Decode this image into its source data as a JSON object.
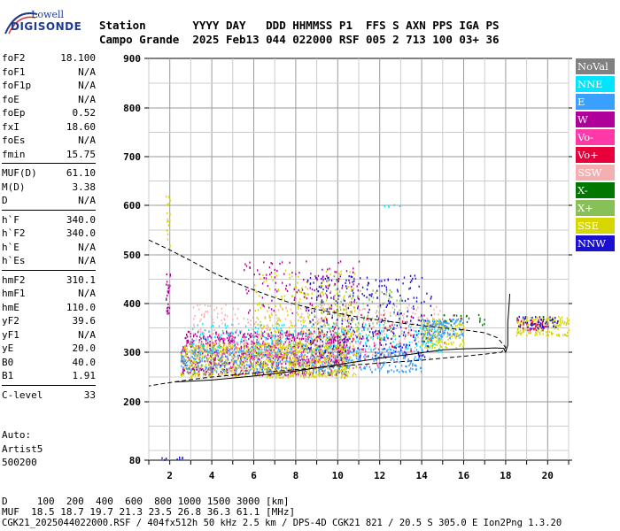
{
  "logo": {
    "line1": "Lowell",
    "line2": "DIGISONDE"
  },
  "header": {
    "row1": "Station       YYYY DAY   DDD HHMMSS P1  FFS S AXN PPS IGA PS",
    "row2": "Campo Grande  2025 Feb13 044 022000 RSF 005 2 713 100 03+ 36"
  },
  "params": [
    [
      {
        "name": "foF2",
        "value": "18.100"
      },
      {
        "name": "foF1",
        "value": "N/A"
      },
      {
        "name": "foF1p",
        "value": "N/A"
      },
      {
        "name": "foE",
        "value": "N/A"
      },
      {
        "name": "foEp",
        "value": "0.52"
      },
      {
        "name": "fxI",
        "value": "18.60"
      },
      {
        "name": "foEs",
        "value": "N/A"
      },
      {
        "name": "fmin",
        "value": "15.75"
      }
    ],
    [
      {
        "name": "MUF(D)",
        "value": "61.10"
      },
      {
        "name": "M(D)",
        "value": "3.38"
      },
      {
        "name": "D",
        "value": "N/A"
      }
    ],
    [
      {
        "name": "h`F",
        "value": "340.0"
      },
      {
        "name": "h`F2",
        "value": "340.0"
      },
      {
        "name": "h`E",
        "value": "N/A"
      },
      {
        "name": "h`Es",
        "value": "N/A"
      }
    ],
    [
      {
        "name": "hmF2",
        "value": "310.1"
      },
      {
        "name": "hmF1",
        "value": "N/A"
      },
      {
        "name": "hmE",
        "value": "110.0"
      },
      {
        "name": "yF2",
        "value": "39.6"
      },
      {
        "name": "yF1",
        "value": "N/A"
      },
      {
        "name": "yE",
        "value": "20.0"
      },
      {
        "name": "B0",
        "value": "40.0"
      },
      {
        "name": "B1",
        "value": "1.91"
      }
    ],
    [
      {
        "name": "C-level",
        "value": "33"
      }
    ]
  ],
  "auto": {
    "line1": "Auto:",
    "line2": "Artist5",
    "line3": "500200"
  },
  "legend": [
    {
      "label": "NoVal",
      "color": "#808080"
    },
    {
      "label": "NNE",
      "color": "#00e5ff"
    },
    {
      "label": "E",
      "color": "#3aa0ff"
    },
    {
      "label": "W",
      "color": "#b0009a"
    },
    {
      "label": "Vo-",
      "color": "#ff3aa8"
    },
    {
      "label": "Vo+",
      "color": "#e8003a"
    },
    {
      "label": "SSW",
      "color": "#f4b0b0"
    },
    {
      "label": "X-",
      "color": "#007800"
    },
    {
      "label": "X+",
      "color": "#88c058"
    },
    {
      "label": "SSE",
      "color": "#d6d600"
    },
    {
      "label": "NNW",
      "color": "#1a10d0"
    }
  ],
  "footer": {
    "line1": "D     100  200  400  600  800 1000 1500 3000 [km]",
    "line2": "MUF  18.5 18.7 19.7 21.3 23.5 26.8 36.3 61.1 [MHz]",
    "line3": "CGK21_2025044022000.RSF / 404fx512h 50 kHz 2.5 km / DPS-4D CGK21 821 / 20.5 S 305.0 E Ion2Png 1.3.20"
  },
  "chart_data": {
    "type": "scatter",
    "x_range": [
      1,
      21
    ],
    "y_range": [
      80,
      900
    ],
    "x_ticks": [
      2,
      4,
      6,
      8,
      10,
      12,
      14,
      16,
      18,
      20
    ],
    "y_ticks": [
      80,
      200,
      300,
      400,
      500,
      600,
      700,
      800,
      900
    ],
    "grid": true,
    "legend_position": "right",
    "blobs": [
      {
        "color": "#b0009a",
        "x": [
          2.5,
          10.5
        ],
        "y": [
          255,
          345
        ],
        "n": 900,
        "w": 1.2
      },
      {
        "color": "#d6d600",
        "x": [
          2.5,
          10.5
        ],
        "y": [
          250,
          320
        ],
        "n": 800,
        "w": 1.2
      },
      {
        "color": "#3aa0ff",
        "x": [
          2.5,
          14
        ],
        "y": [
          260,
          310
        ],
        "n": 500,
        "w": 1.2
      },
      {
        "color": "#f4b0b0",
        "x": [
          3,
          15
        ],
        "y": [
          290,
          400
        ],
        "n": 450,
        "w": 1.2
      },
      {
        "color": "#00e5ff",
        "x": [
          3,
          15
        ],
        "y": [
          300,
          360
        ],
        "n": 300,
        "w": 1.2
      },
      {
        "color": "#1a10d0",
        "x": [
          8.5,
          14.5
        ],
        "y": [
          290,
          460
        ],
        "n": 350,
        "w": 1.2
      },
      {
        "color": "#d6d600",
        "x": [
          6,
          11
        ],
        "y": [
          250,
          470
        ],
        "n": 400,
        "w": 1.0
      },
      {
        "color": "#b0009a",
        "x": [
          5.5,
          11
        ],
        "y": [
          380,
          490
        ],
        "n": 120,
        "w": 1.0
      },
      {
        "color": "#88c058",
        "x": [
          9,
          13
        ],
        "y": [
          330,
          430
        ],
        "n": 120,
        "w": 1.2
      },
      {
        "color": "#e8003a",
        "x": [
          9,
          16
        ],
        "y": [
          300,
          380
        ],
        "n": 80,
        "w": 1.2
      },
      {
        "color": "#ff3aa8",
        "x": [
          4,
          12
        ],
        "y": [
          270,
          340
        ],
        "n": 150,
        "w": 1.2
      },
      {
        "color": "#d6d600",
        "x": [
          14,
          16
        ],
        "y": [
          310,
          370
        ],
        "n": 150,
        "w": 1.2
      },
      {
        "color": "#3aa0ff",
        "x": [
          14,
          16
        ],
        "y": [
          330,
          370
        ],
        "n": 120,
        "w": 1.2
      },
      {
        "color": "#d6d600",
        "x": [
          18.5,
          21
        ],
        "y": [
          335,
          375
        ],
        "n": 160,
        "w": 1.2
      },
      {
        "color": "#1a10d0",
        "x": [
          18.5,
          20.5
        ],
        "y": [
          350,
          375
        ],
        "n": 60,
        "w": 1.2
      },
      {
        "color": "#e8003a",
        "x": [
          18.5,
          20
        ],
        "y": [
          345,
          370
        ],
        "n": 30,
        "w": 1.2
      },
      {
        "color": "#007800",
        "x": [
          15,
          17
        ],
        "y": [
          355,
          380
        ],
        "n": 20,
        "w": 1.2
      },
      {
        "color": "#b0009a",
        "x": [
          1.8,
          2.0
        ],
        "y": [
          380,
          470
        ],
        "n": 25,
        "w": 1.0
      },
      {
        "color": "#d6d600",
        "x": [
          1.8,
          2.0
        ],
        "y": [
          520,
          630
        ],
        "n": 20,
        "w": 1.0
      },
      {
        "color": "#1a10d0",
        "x": [
          1.4,
          2.6
        ],
        "y": [
          82,
          88
        ],
        "n": 8,
        "w": 1.0
      },
      {
        "color": "#00e5ff",
        "x": [
          12,
          13
        ],
        "y": [
          598,
          604
        ],
        "n": 6,
        "w": 1.0
      }
    ],
    "trace": {
      "x": [
        2.25,
        4,
        6,
        8,
        10,
        12,
        13.5,
        14.5,
        15,
        16,
        17,
        17.5,
        17.9,
        18.0,
        18.1,
        18.1,
        18.1,
        18.15,
        18.2
      ],
      "y": [
        240,
        244,
        252,
        262,
        275,
        288,
        296,
        302,
        305,
        307,
        308,
        309,
        308,
        300,
        315,
        340,
        360,
        390,
        420
      ]
    },
    "profile": {
      "x": [
        1.0,
        2.0,
        3.0,
        4.0,
        5.0,
        6.0,
        7.0,
        8.0,
        9.0,
        10.0,
        11.0,
        12.0,
        13.0,
        14.0,
        15.0,
        16.0,
        17.0,
        17.6,
        18.0,
        17.8,
        17.0,
        16.0,
        15.0,
        14.0,
        12.0,
        10.0,
        8.0,
        6.0,
        4.0,
        2.5,
        1.6,
        1.0
      ],
      "y": [
        530,
        510,
        488,
        465,
        445,
        428,
        412,
        398,
        388,
        380,
        372,
        366,
        360,
        355,
        350,
        346,
        340,
        330,
        310,
        300,
        296,
        292,
        288,
        284,
        278,
        272,
        265,
        258,
        250,
        242,
        236,
        232
      ]
    }
  }
}
